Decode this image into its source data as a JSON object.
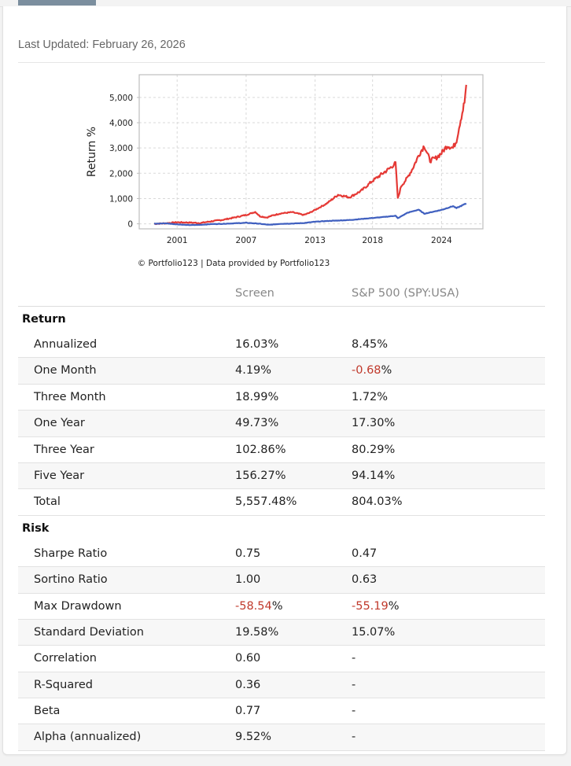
{
  "header": {
    "last_updated": "Last Updated: February 26, 2026"
  },
  "colors": {
    "screen_line": "#e53935",
    "benchmark_line": "#3f5fbf",
    "negative_value": "#c0392b",
    "tab_indicator": "#7b8e9e"
  },
  "chart_data": {
    "type": "line",
    "title": "",
    "xlabel": "",
    "ylabel": "Return %",
    "ylim": [
      -200,
      5900
    ],
    "xlim": [
      1997.7,
      2027.6
    ],
    "yticks": [
      0,
      1000,
      2000,
      3000,
      4000,
      5000
    ],
    "ytick_labels": [
      "0",
      "1,000",
      "2,000",
      "3,000",
      "4,000",
      "5,000"
    ],
    "xticks": [
      2001,
      2007,
      2013,
      2018,
      2024
    ],
    "xtick_labels": [
      "2001",
      "2007",
      "2013",
      "2018",
      "2024"
    ],
    "grid": true,
    "legend": "none",
    "credit": "© Portfolio123 | Data provided by Portfolio123",
    "series": [
      {
        "name": "Screen",
        "color": "#e53935",
        "x": [
          1999.0,
          2000.0,
          2001.0,
          2002.0,
          2003.0,
          2004.0,
          2005.0,
          2006.0,
          2007.0,
          2007.8,
          2008.2,
          2008.8,
          2009.3,
          2010.0,
          2011.0,
          2012.0,
          2012.5,
          2013.0,
          2014.0,
          2015.0,
          2016.0,
          2017.0,
          2018.0,
          2018.6,
          2019.5,
          2020.0,
          2020.2,
          2020.5,
          2021.0,
          2021.5,
          2022.0,
          2022.5,
          2023.0,
          2023.5,
          2024.0,
          2024.5,
          2025.0,
          2025.3,
          2025.6,
          2026.0,
          2026.15
        ],
        "values": [
          0,
          20,
          60,
          50,
          30,
          100,
          160,
          250,
          350,
          470,
          300,
          250,
          330,
          410,
          460,
          350,
          430,
          550,
          800,
          1150,
          1050,
          1300,
          1700,
          1900,
          2200,
          2400,
          1000,
          1500,
          1800,
          2200,
          2700,
          3100,
          2500,
          2600,
          2800,
          3100,
          3000,
          3300,
          4000,
          4800,
          5500
        ]
      },
      {
        "name": "S&P 500 (SPY:USA)",
        "color": "#3f5fbf",
        "x": [
          1999.0,
          2000.0,
          2001.0,
          2002.0,
          2003.0,
          2004.0,
          2005.0,
          2006.0,
          2007.0,
          2008.0,
          2009.0,
          2010.0,
          2011.0,
          2012.0,
          2013.0,
          2014.0,
          2015.0,
          2016.0,
          2017.0,
          2018.0,
          2019.0,
          2020.0,
          2020.2,
          2021.0,
          2022.0,
          2022.5,
          2023.0,
          2024.0,
          2025.0,
          2025.3,
          2026.15
        ],
        "values": [
          0,
          20,
          -20,
          -50,
          -40,
          -10,
          0,
          20,
          40,
          10,
          -40,
          0,
          10,
          30,
          80,
          110,
          130,
          150,
          190,
          230,
          270,
          320,
          220,
          430,
          560,
          400,
          450,
          550,
          700,
          620,
          804
        ]
      }
    ]
  },
  "table": {
    "columns": [
      "",
      "Screen",
      "S&P 500 (SPY:USA)"
    ],
    "sections": [
      {
        "title": "Return",
        "rows": [
          {
            "label": "Annualized",
            "screen": "16.03%",
            "benchmark": "8.45%"
          },
          {
            "label": "One Month",
            "screen": "4.19%",
            "benchmark_neg": "-0.68",
            "benchmark_suffix": "%"
          },
          {
            "label": "Three Month",
            "screen": "18.99%",
            "benchmark": "1.72%"
          },
          {
            "label": "One Year",
            "screen": "49.73%",
            "benchmark": "17.30%"
          },
          {
            "label": "Three Year",
            "screen": "102.86%",
            "benchmark": "80.29%"
          },
          {
            "label": "Five Year",
            "screen": "156.27%",
            "benchmark": "94.14%"
          },
          {
            "label": "Total",
            "screen": "5,557.48%",
            "benchmark": "804.03%"
          }
        ]
      },
      {
        "title": "Risk",
        "rows": [
          {
            "label": "Sharpe Ratio",
            "screen": "0.75",
            "benchmark": "0.47"
          },
          {
            "label": "Sortino Ratio",
            "screen": "1.00",
            "benchmark": "0.63"
          },
          {
            "label": "Max Drawdown",
            "screen_neg": "-58.54",
            "screen_suffix": "%",
            "benchmark_neg": "-55.19",
            "benchmark_suffix": "%"
          },
          {
            "label": "Standard Deviation",
            "screen": "19.58%",
            "benchmark": "15.07%"
          },
          {
            "label": "Correlation",
            "screen": "0.60",
            "benchmark": "-"
          },
          {
            "label": "R-Squared",
            "screen": "0.36",
            "benchmark": "-"
          },
          {
            "label": "Beta",
            "screen": "0.77",
            "benchmark": "-"
          },
          {
            "label": "Alpha (annualized)",
            "screen": "9.52%",
            "benchmark": "-"
          }
        ]
      }
    ]
  }
}
